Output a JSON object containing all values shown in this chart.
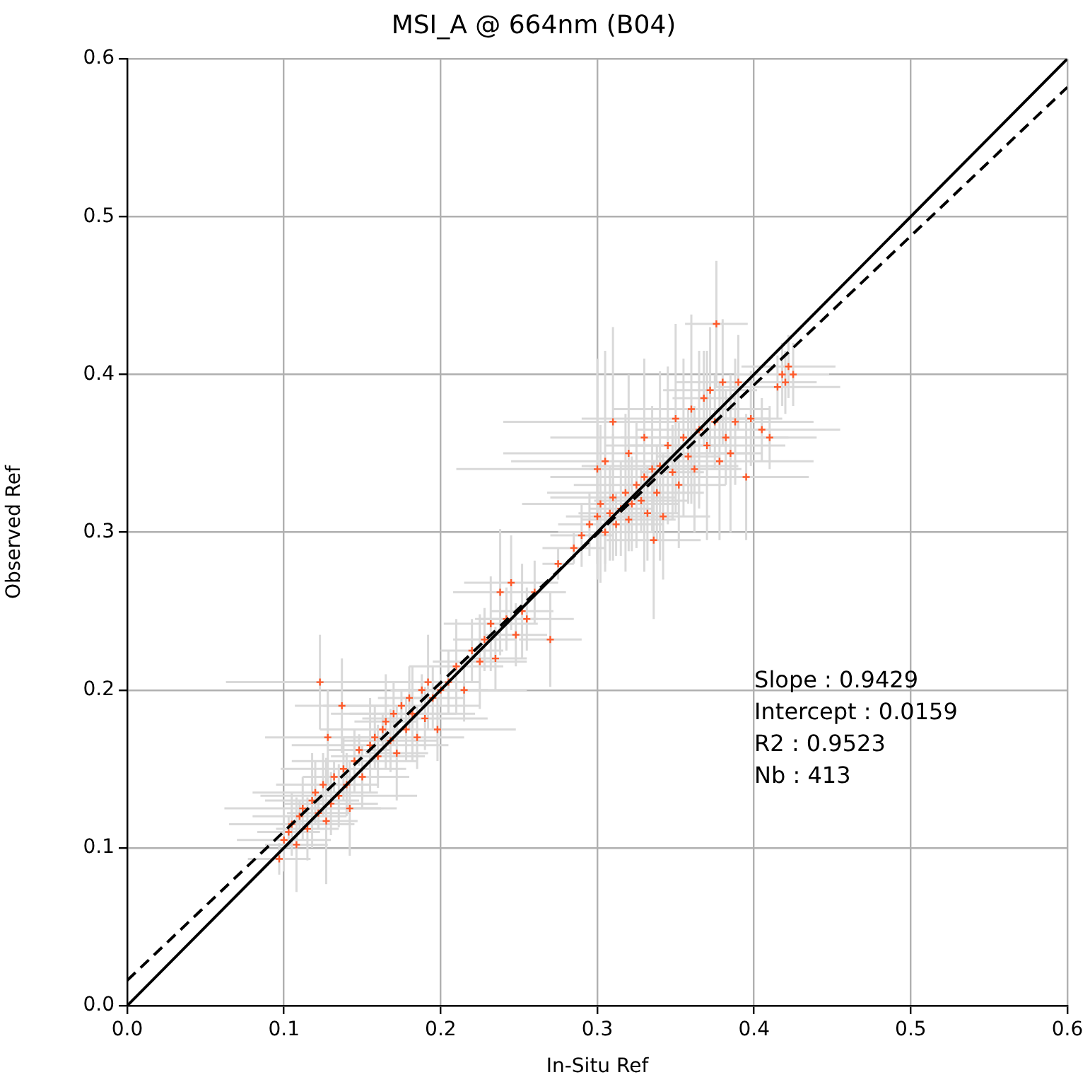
{
  "chart_data": {
    "type": "scatter",
    "title": "MSI_A @ 664nm (B04)",
    "xlabel": "In-Situ Ref",
    "ylabel": "Observed Ref",
    "xlim": [
      0,
      0.6
    ],
    "ylim": [
      0,
      0.6
    ],
    "xticks": [
      {
        "value": 0,
        "label": "0.0"
      },
      0.1,
      0.2,
      0.3,
      0.4,
      0.5,
      0.6
    ],
    "yticks": [
      {
        "value": 0,
        "label": "0.0"
      },
      0.1,
      0.2,
      0.3,
      0.4,
      0.5,
      0.6
    ],
    "grid": true,
    "legend": false,
    "annotations": [
      "Slope : 0.9429",
      "Intercept : 0.0159",
      "R2 : 0.9523",
      "Nb : 413"
    ],
    "series": [
      {
        "color": "#ff5a2a",
        "marker": "cross",
        "x": [
          0.097,
          0.1,
          0.103,
          0.105,
          0.108,
          0.11,
          0.112,
          0.115,
          0.118,
          0.12,
          0.122,
          0.123,
          0.125,
          0.127,
          0.128,
          0.13,
          0.132,
          0.135,
          0.137,
          0.138,
          0.14,
          0.142,
          0.145,
          0.148,
          0.15,
          0.155,
          0.158,
          0.16,
          0.163,
          0.165,
          0.168,
          0.17,
          0.172,
          0.175,
          0.178,
          0.18,
          0.182,
          0.185,
          0.188,
          0.19,
          0.192,
          0.195,
          0.198,
          0.2,
          0.205,
          0.21,
          0.215,
          0.22,
          0.225,
          0.228,
          0.232,
          0.235,
          0.238,
          0.242,
          0.245,
          0.248,
          0.252,
          0.255,
          0.26,
          0.27,
          0.275,
          0.285,
          0.29,
          0.295,
          0.3,
          0.302,
          0.305,
          0.305,
          0.308,
          0.31,
          0.312,
          0.315,
          0.318,
          0.32,
          0.322,
          0.325,
          0.328,
          0.33,
          0.332,
          0.335,
          0.336,
          0.338,
          0.34,
          0.342,
          0.345,
          0.348,
          0.35,
          0.352,
          0.355,
          0.358,
          0.36,
          0.362,
          0.365,
          0.368,
          0.37,
          0.372,
          0.375,
          0.376,
          0.378,
          0.38,
          0.382,
          0.385,
          0.388,
          0.39,
          0.395,
          0.398,
          0.405,
          0.41,
          0.415,
          0.418,
          0.42,
          0.422,
          0.425,
          0.31,
          0.32,
          0.3,
          0.33
        ],
        "values": [
          0.093,
          0.105,
          0.11,
          0.115,
          0.102,
          0.12,
          0.125,
          0.112,
          0.13,
          0.135,
          0.122,
          0.205,
          0.14,
          0.117,
          0.17,
          0.128,
          0.145,
          0.133,
          0.19,
          0.15,
          0.14,
          0.125,
          0.155,
          0.162,
          0.145,
          0.165,
          0.17,
          0.158,
          0.175,
          0.18,
          0.168,
          0.185,
          0.16,
          0.19,
          0.175,
          0.195,
          0.185,
          0.17,
          0.2,
          0.182,
          0.205,
          0.195,
          0.175,
          0.2,
          0.205,
          0.215,
          0.2,
          0.225,
          0.218,
          0.232,
          0.242,
          0.22,
          0.262,
          0.245,
          0.268,
          0.235,
          0.25,
          0.245,
          0.262,
          0.232,
          0.28,
          0.29,
          0.298,
          0.305,
          0.31,
          0.318,
          0.3,
          0.345,
          0.312,
          0.322,
          0.305,
          0.315,
          0.325,
          0.308,
          0.318,
          0.33,
          0.32,
          0.335,
          0.312,
          0.34,
          0.295,
          0.325,
          0.342,
          0.31,
          0.355,
          0.338,
          0.372,
          0.33,
          0.36,
          0.348,
          0.378,
          0.34,
          0.365,
          0.385,
          0.355,
          0.39,
          0.37,
          0.432,
          0.345,
          0.395,
          0.36,
          0.35,
          0.37,
          0.395,
          0.335,
          0.372,
          0.365,
          0.36,
          0.392,
          0.4,
          0.395,
          0.405,
          0.4,
          0.37,
          0.35,
          0.34,
          0.36
        ],
        "xerrors": [
          0.02,
          0.03,
          0.02,
          0.04,
          0.02,
          0.03,
          0.05,
          0.02,
          0.03,
          0.04,
          0.02,
          0.06,
          0.03,
          0.02,
          0.04,
          0.03,
          0.02,
          0.05,
          0.03,
          0.04,
          0.02,
          0.03,
          0.04,
          0.02,
          0.03,
          0.05,
          0.02,
          0.03,
          0.04,
          0.02,
          0.03,
          0.04,
          0.02,
          0.05,
          0.03,
          0.02,
          0.04,
          0.03,
          0.02,
          0.04,
          0.03,
          0.02,
          0.05,
          0.03,
          0.02,
          0.03,
          0.04,
          0.02,
          0.03,
          0.02,
          0.03,
          0.02,
          0.03,
          0.02,
          0.03,
          0.02,
          0.02,
          0.03,
          0.02,
          0.02,
          0.01,
          0.02,
          0.02,
          0.02,
          0.02,
          0.05,
          0.03,
          0.06,
          0.02,
          0.04,
          0.03,
          0.02,
          0.05,
          0.03,
          0.02,
          0.04,
          0.03,
          0.06,
          0.02,
          0.04,
          0.03,
          0.02,
          0.05,
          0.03,
          0.04,
          0.02,
          0.06,
          0.03,
          0.04,
          0.02,
          0.05,
          0.03,
          0.04,
          0.02,
          0.05,
          0.03,
          0.04,
          0.02,
          0.06,
          0.03,
          0.04,
          0.02,
          0.05,
          0.03,
          0.04,
          0.02,
          0.05,
          0.03,
          0.04,
          0.03,
          0.02,
          0.03,
          0.02,
          0.07,
          0.08,
          0.09,
          0.06
        ],
        "errors": [
          0.01,
          0.02,
          0.01,
          0.02,
          0.03,
          0.01,
          0.02,
          0.02,
          0.03,
          0.02,
          0.01,
          0.03,
          0.02,
          0.04,
          0.03,
          0.02,
          0.01,
          0.02,
          0.03,
          0.02,
          0.02,
          0.03,
          0.02,
          0.01,
          0.02,
          0.03,
          0.02,
          0.02,
          0.01,
          0.03,
          0.02,
          0.02,
          0.03,
          0.01,
          0.02,
          0.02,
          0.03,
          0.02,
          0.01,
          0.02,
          0.03,
          0.02,
          0.02,
          0.01,
          0.02,
          0.03,
          0.02,
          0.02,
          0.03,
          0.02,
          0.03,
          0.02,
          0.04,
          0.02,
          0.03,
          0.02,
          0.03,
          0.02,
          0.02,
          0.03,
          0.01,
          0.01,
          0.02,
          0.02,
          0.03,
          0.05,
          0.02,
          0.07,
          0.03,
          0.04,
          0.02,
          0.03,
          0.05,
          0.02,
          0.03,
          0.04,
          0.02,
          0.06,
          0.03,
          0.04,
          0.05,
          0.03,
          0.06,
          0.04,
          0.05,
          0.03,
          0.06,
          0.04,
          0.05,
          0.03,
          0.06,
          0.04,
          0.05,
          0.03,
          0.06,
          0.04,
          0.03,
          0.04,
          0.05,
          0.04,
          0.03,
          0.05,
          0.04,
          0.03,
          0.04,
          0.03,
          0.02,
          0.02,
          0.02,
          0.02,
          0.02,
          0.02,
          0.02,
          0.06,
          0.05,
          0.07,
          0.05
        ]
      },
      {
        "type": "line",
        "color": "#000000",
        "line_style": "solid",
        "x": [
          0,
          0.6
        ],
        "values": [
          0,
          0.6
        ]
      },
      {
        "type": "line",
        "color": "#000000",
        "line_style": "dashed",
        "x": [
          0,
          0.6
        ],
        "values": [
          0.016,
          0.582
        ]
      }
    ]
  }
}
